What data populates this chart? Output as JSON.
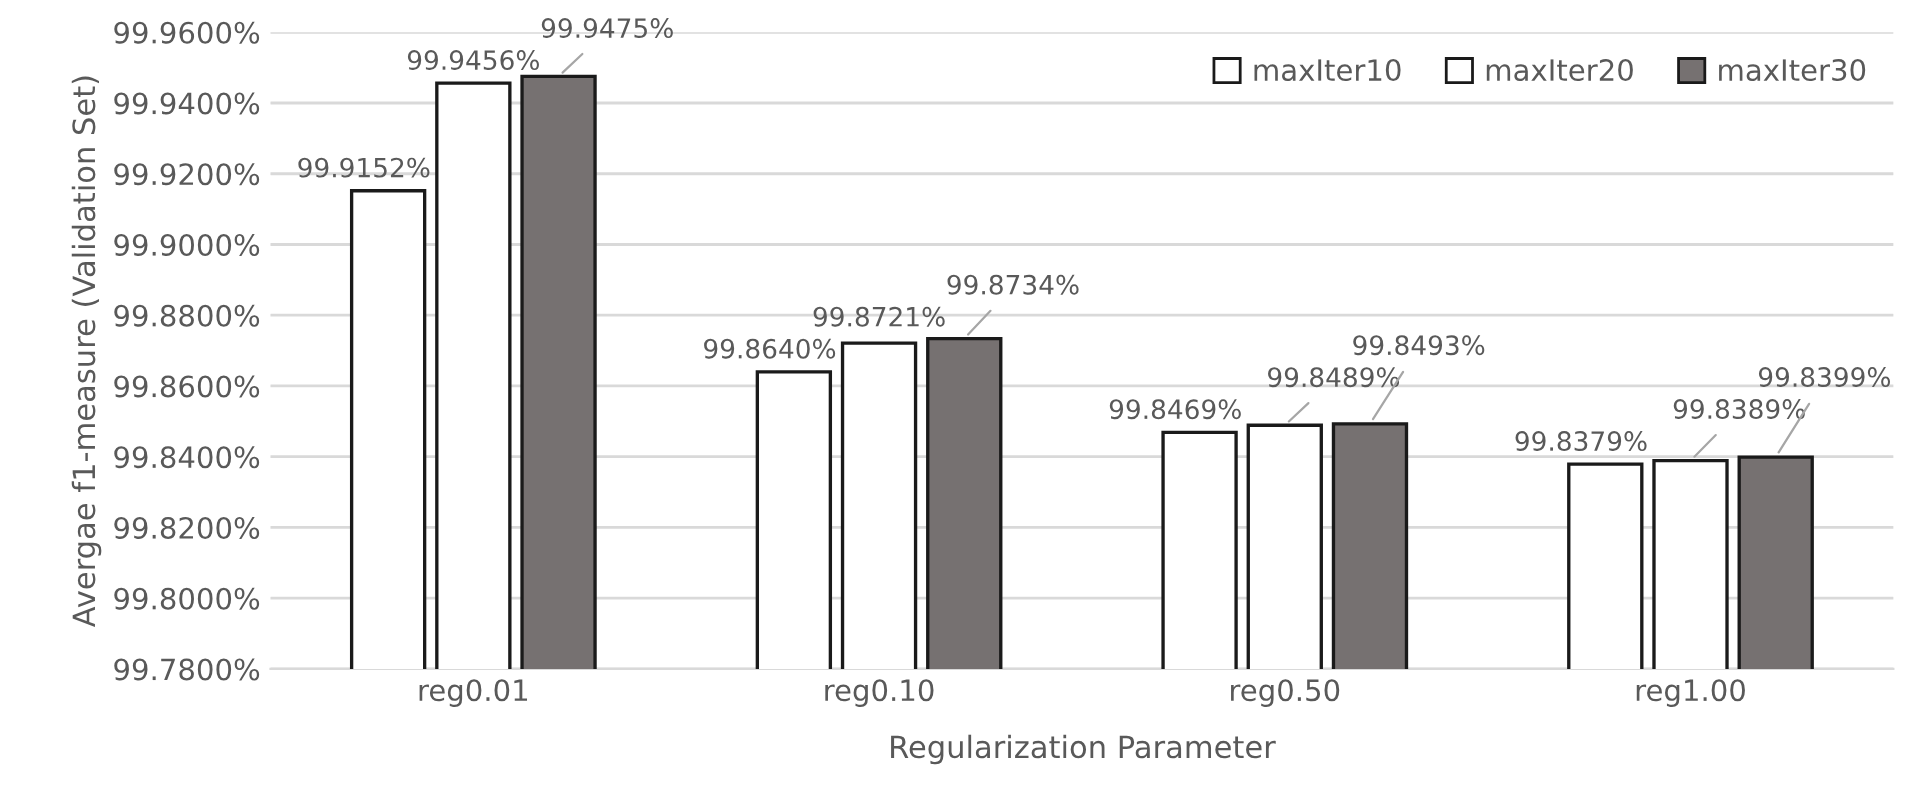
{
  "chart_data": {
    "type": "bar",
    "xlabel": "Regularization Parameter",
    "ylabel": "Avergae f1-measure (Validation Set)",
    "categories": [
      "reg0.01",
      "reg0.10",
      "reg0.50",
      "reg1.00"
    ],
    "series": [
      {
        "name": "maxIter10",
        "color": "#ffffff",
        "values": [
          99.9152,
          99.864,
          99.8469,
          99.8379
        ],
        "value_labels": [
          "99.9152%",
          "99.8640%",
          "99.8469%",
          "99.8379%"
        ]
      },
      {
        "name": "maxIter20",
        "color": "#ffffff",
        "values": [
          99.9456,
          99.8721,
          99.8489,
          99.8389
        ],
        "value_labels": [
          "99.9456%",
          "99.8721%",
          "99.8489%",
          "99.8389%"
        ]
      },
      {
        "name": "maxIter30",
        "color": "#767171",
        "values": [
          99.9475,
          99.8734,
          99.8493,
          99.8399
        ],
        "value_labels": [
          "99.9475%",
          "99.8734%",
          "99.8493%",
          "99.8399%"
        ]
      }
    ],
    "ylim": [
      99.78,
      99.96
    ],
    "yticks": [
      {
        "value": 99.78,
        "label": "99.7800%"
      },
      {
        "value": 99.8,
        "label": "99.8000%"
      },
      {
        "value": 99.82,
        "label": "99.8200%"
      },
      {
        "value": 99.84,
        "label": "99.8400%"
      },
      {
        "value": 99.86,
        "label": "99.8600%"
      },
      {
        "value": 99.88,
        "label": "99.8800%"
      },
      {
        "value": 99.9,
        "label": "99.9000%"
      },
      {
        "value": 99.92,
        "label": "99.9200%"
      },
      {
        "value": 99.94,
        "label": "99.9400%"
      },
      {
        "value": 99.96,
        "label": "99.9600%"
      }
    ],
    "grid": "y",
    "legend": "top right"
  }
}
